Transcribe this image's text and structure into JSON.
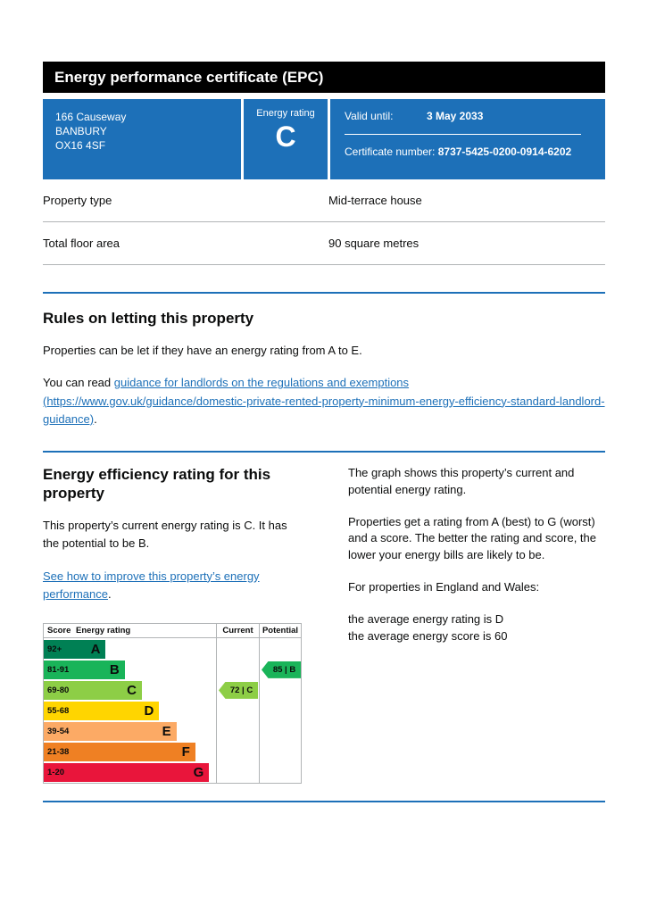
{
  "page": {
    "title": "Energy performance certificate (EPC)"
  },
  "summary": {
    "address_lines": [
      "166 Causeway",
      "BANBURY",
      "OX16 4SF"
    ],
    "energy_rating_label": "Energy rating",
    "energy_rating": "C",
    "valid_until_label": "Valid until:",
    "valid_until": "3 May 2033",
    "certificate_number_label": "Certificate number:",
    "certificate_number": "8737-5425-0200-0914-6202",
    "banner_color": "#1d70b8"
  },
  "facts": [
    {
      "label": "Property type",
      "value": "Mid-terrace house"
    },
    {
      "label": "Total floor area",
      "value": "90 square metres"
    }
  ],
  "letting": {
    "heading": "Rules on letting this property",
    "body": "Properties can be let if they have an energy rating from A to E.",
    "read_prefix": "You can read ",
    "link_text": "guidance for landlords on the regulations and exemptions",
    "link_url_text": "(https://www.gov.uk/guidance/domestic-private-rented-property-minimum-energy-efficiency-standard-landlord-guidance)",
    "suffix": "."
  },
  "efficiency": {
    "heading": "Energy efficiency rating for this property",
    "current_text": "This property’s current energy rating is C. It has the potential to be B.",
    "link_text": "See how to improve this property’s energy performance",
    "link_suffix": ".",
    "right_para1": "The graph shows this property’s current and potential energy rating.",
    "right_para2": "Properties get a rating from A (best) to G (worst) and a score. The better the rating and score, the lower your energy bills are likely to be.",
    "right_para3": "For properties in England and Wales:",
    "right_para4a": "the average energy rating is D",
    "right_para4b": "the average energy score is 60"
  },
  "chart_data": {
    "type": "bar",
    "title": "Energy efficiency rating bands",
    "headers": {
      "score": "Score",
      "rating": "Energy rating",
      "current": "Current",
      "potential": "Potential"
    },
    "bands": [
      {
        "score": "92+",
        "letter": "A",
        "color": "#008054",
        "width_pct": 36
      },
      {
        "score": "81-91",
        "letter": "B",
        "color": "#19b459",
        "width_pct": 47
      },
      {
        "score": "69-80",
        "letter": "C",
        "color": "#8dce46",
        "width_pct": 57
      },
      {
        "score": "55-68",
        "letter": "D",
        "color": "#ffd500",
        "width_pct": 67
      },
      {
        "score": "39-54",
        "letter": "E",
        "color": "#fcaa65",
        "width_pct": 77
      },
      {
        "score": "21-38",
        "letter": "F",
        "color": "#ef8023",
        "width_pct": 88
      },
      {
        "score": "1-20",
        "letter": "G",
        "color": "#e9153b",
        "width_pct": 96
      }
    ],
    "current": {
      "value": 72,
      "letter": "C",
      "label": "72 | C",
      "band_index": 2,
      "color": "#8dce46"
    },
    "potential": {
      "value": 85,
      "letter": "B",
      "label": "85 | B",
      "band_index": 1,
      "color": "#19b459"
    }
  }
}
